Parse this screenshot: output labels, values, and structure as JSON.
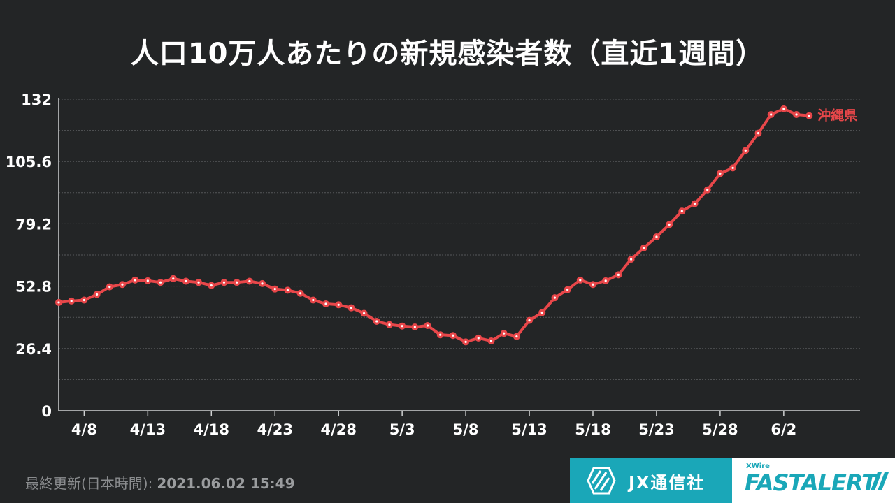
{
  "title": "人口10万人あたりの新規感染者数（直近1週間）",
  "footer": {
    "updated_label": "最終更新(日本時間):",
    "updated_time": "2021.06.02 15:49"
  },
  "logos": {
    "jx": "JX通信社",
    "fastalert_small": "XWire",
    "fastalert": "FASTALERT"
  },
  "colors": {
    "background": "#232526",
    "series": "#e8474a",
    "grid": "#555759",
    "brand": "#1aa7b8"
  },
  "chart_data": {
    "type": "line",
    "title": "人口10万人あたりの新規感染者数（直近1週間）",
    "xlabel": "",
    "ylabel": "",
    "ylim": [
      0,
      132
    ],
    "yticks": [
      "0",
      "26.4",
      "52.8",
      "79.2",
      "105.6",
      "132"
    ],
    "x_tick_labels": [
      "4/8",
      "4/13",
      "4/18",
      "4/23",
      "4/28",
      "5/3",
      "5/8",
      "5/13",
      "5/18",
      "5/23",
      "5/28",
      "6/2"
    ],
    "x_tick_days": [
      2,
      7,
      12,
      17,
      22,
      27,
      32,
      37,
      42,
      47,
      52,
      57
    ],
    "grid": true,
    "series": [
      {
        "name": "沖縄県",
        "x_start": "4/6",
        "values": [
          45.9,
          46.5,
          46.9,
          49.3,
          52.5,
          53.5,
          55.4,
          55.1,
          54.4,
          56.0,
          54.9,
          54.4,
          53.1,
          54.4,
          54.4,
          54.9,
          53.9,
          51.6,
          51.1,
          49.8,
          46.9,
          45.3,
          44.9,
          43.6,
          41.3,
          37.9,
          36.5,
          35.9,
          35.5,
          36.1,
          32.2,
          31.9,
          29.2,
          30.8,
          29.6,
          32.8,
          31.5,
          38.3,
          41.6,
          47.9,
          51.3,
          55.4,
          53.5,
          55.1,
          57.6,
          64.2,
          69.0,
          73.7,
          78.9,
          84.6,
          87.7,
          93.6,
          100.5,
          102.9,
          110.3,
          117.6,
          125.5,
          127.9,
          125.5,
          125.0
        ]
      }
    ]
  }
}
